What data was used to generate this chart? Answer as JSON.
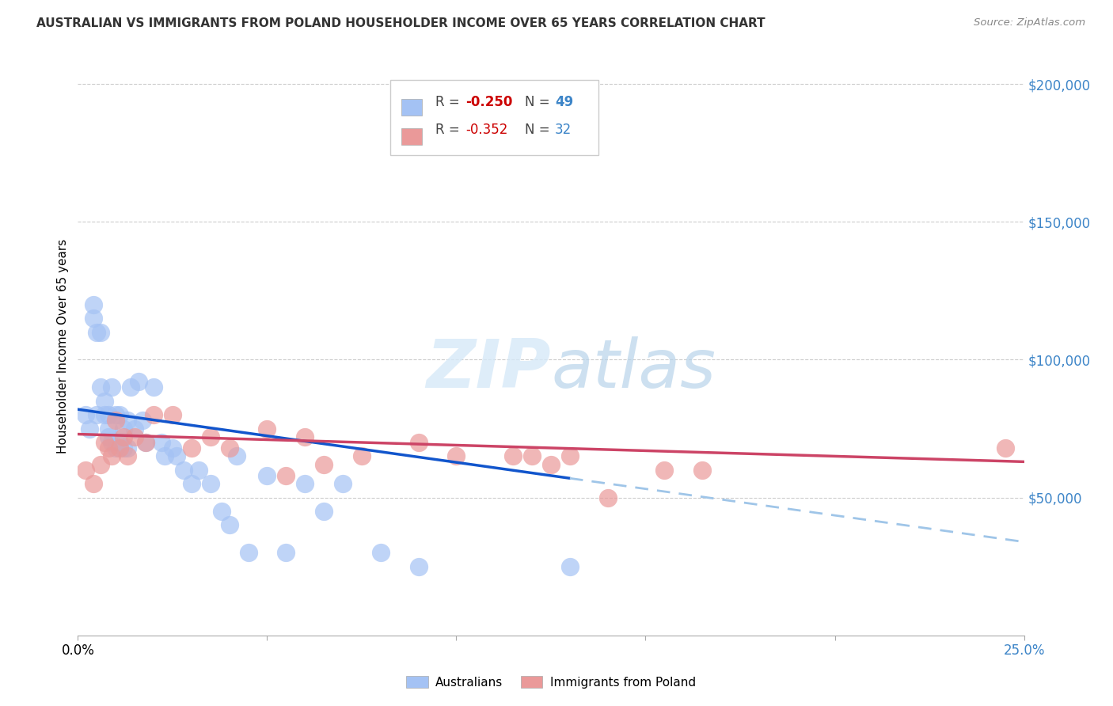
{
  "title": "AUSTRALIAN VS IMMIGRANTS FROM POLAND HOUSEHOLDER INCOME OVER 65 YEARS CORRELATION CHART",
  "source": "Source: ZipAtlas.com",
  "ylabel": "Householder Income Over 65 years",
  "xlim": [
    0.0,
    0.25
  ],
  "ylim": [
    0,
    210000
  ],
  "bg_color": "#ffffff",
  "australians_color": "#a4c2f4",
  "poland_color": "#ea9999",
  "trendline_aus_color": "#1155cc",
  "trendline_pol_color": "#cc4466",
  "trendline_aus_dash_color": "#9fc5e8",
  "legend_R_aus": "-0.250",
  "legend_N_aus": "49",
  "legend_R_pol": "-0.352",
  "legend_N_pol": "32",
  "watermark_zip": "ZIP",
  "watermark_atlas": "atlas",
  "australians_x": [
    0.002,
    0.003,
    0.004,
    0.004,
    0.005,
    0.005,
    0.006,
    0.006,
    0.007,
    0.007,
    0.008,
    0.008,
    0.008,
    0.009,
    0.009,
    0.01,
    0.01,
    0.011,
    0.011,
    0.012,
    0.012,
    0.013,
    0.013,
    0.014,
    0.015,
    0.016,
    0.017,
    0.018,
    0.02,
    0.022,
    0.023,
    0.025,
    0.026,
    0.028,
    0.03,
    0.032,
    0.035,
    0.038,
    0.04,
    0.042,
    0.045,
    0.05,
    0.055,
    0.06,
    0.065,
    0.07,
    0.08,
    0.09,
    0.13
  ],
  "australians_y": [
    80000,
    75000,
    120000,
    115000,
    110000,
    80000,
    110000,
    90000,
    85000,
    80000,
    80000,
    75000,
    72000,
    90000,
    70000,
    80000,
    68000,
    80000,
    70000,
    75000,
    68000,
    78000,
    68000,
    90000,
    75000,
    92000,
    78000,
    70000,
    90000,
    70000,
    65000,
    68000,
    65000,
    60000,
    55000,
    60000,
    55000,
    45000,
    40000,
    65000,
    30000,
    58000,
    30000,
    55000,
    45000,
    55000,
    30000,
    25000,
    25000
  ],
  "poland_x": [
    0.002,
    0.004,
    0.006,
    0.007,
    0.008,
    0.009,
    0.01,
    0.011,
    0.012,
    0.013,
    0.015,
    0.018,
    0.02,
    0.025,
    0.03,
    0.035,
    0.04,
    0.05,
    0.055,
    0.06,
    0.065,
    0.075,
    0.09,
    0.1,
    0.115,
    0.12,
    0.125,
    0.13,
    0.14,
    0.155,
    0.165,
    0.245
  ],
  "poland_y": [
    60000,
    55000,
    62000,
    70000,
    68000,
    65000,
    78000,
    68000,
    72000,
    65000,
    72000,
    70000,
    80000,
    80000,
    68000,
    72000,
    68000,
    75000,
    58000,
    72000,
    62000,
    65000,
    70000,
    65000,
    65000,
    65000,
    62000,
    65000,
    50000,
    60000,
    60000,
    68000
  ]
}
